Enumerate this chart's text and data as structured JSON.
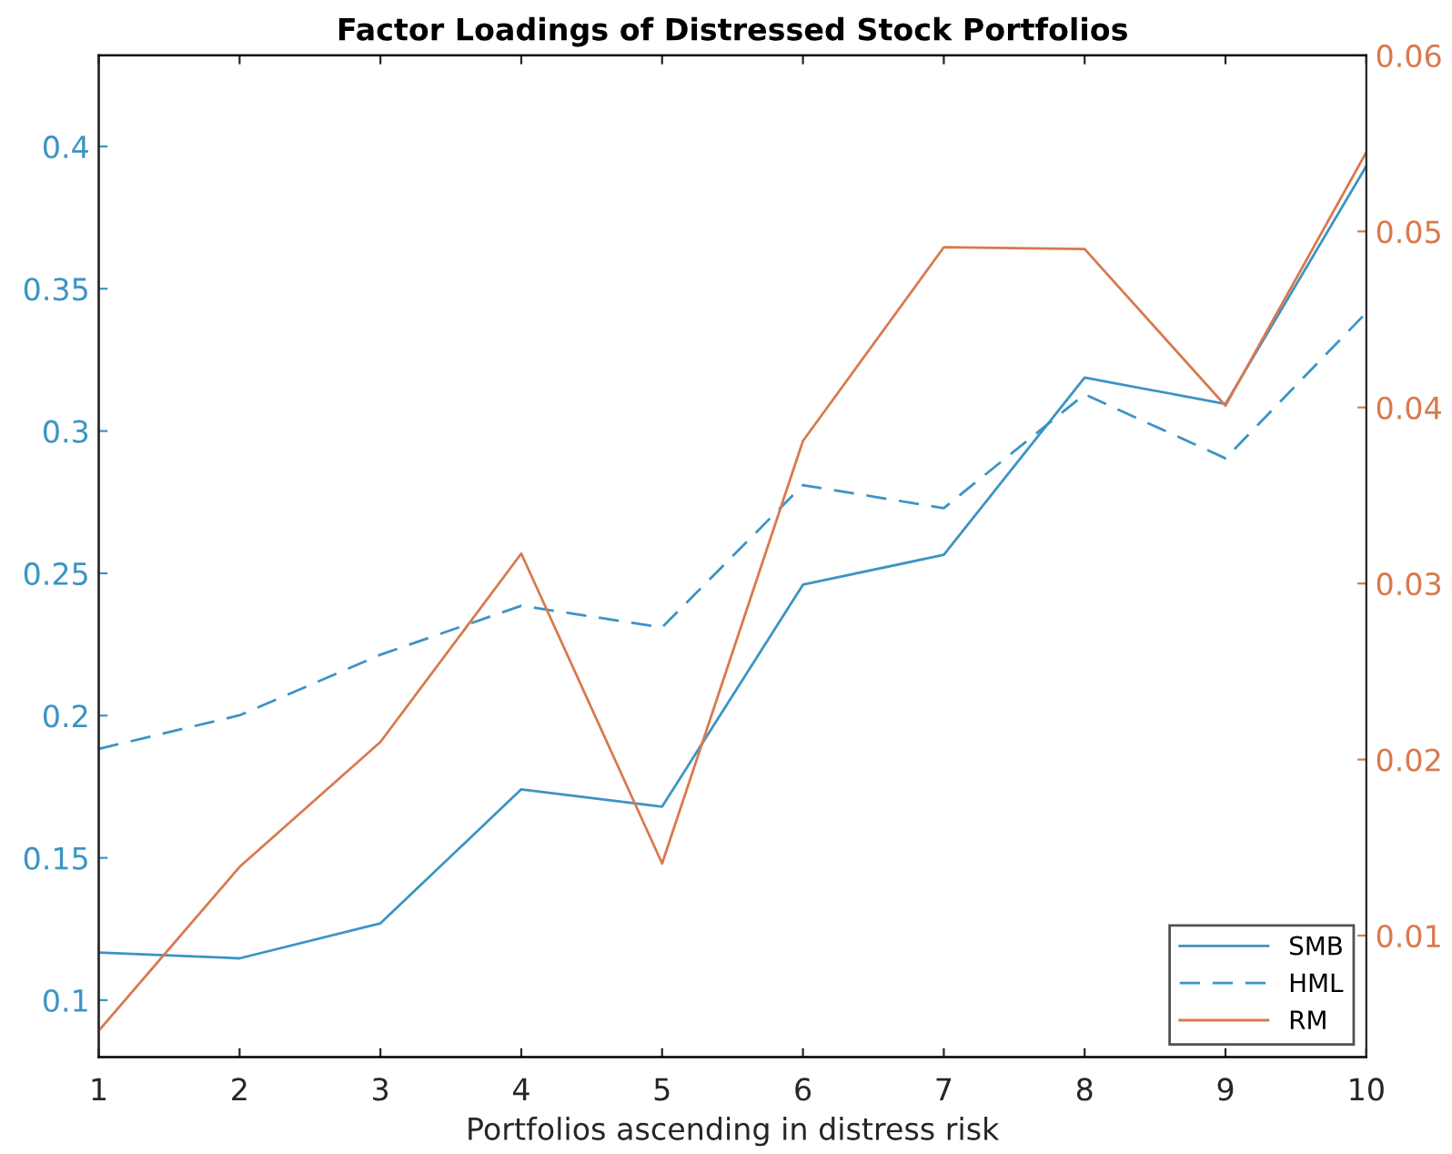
{
  "chart_data": {
    "type": "line",
    "title": "Factor Loadings of Distressed Stock Portfolios",
    "xlabel": "Portfolios ascending in distress risk",
    "x": [
      1,
      2,
      3,
      4,
      5,
      6,
      7,
      8,
      9,
      10
    ],
    "xlim": [
      1,
      10
    ],
    "xticks": [
      1,
      2,
      3,
      4,
      5,
      6,
      7,
      8,
      9,
      10
    ],
    "ylim": [
      0.08,
      0.432
    ],
    "yticks": [
      0.1,
      0.15,
      0.2,
      0.25,
      0.3,
      0.35,
      0.4
    ],
    "y2lim": [
      0.0031,
      0.06
    ],
    "y2ticks": [
      0.01,
      0.02,
      0.03,
      0.04,
      0.05,
      0.06
    ],
    "grid": false,
    "legend": "bottom right",
    "marker": "none",
    "series": [
      {
        "name": "SMB",
        "color": "#3c94c4",
        "line_style": "solid",
        "values": [
          0.1167,
          0.1147,
          0.127,
          0.1741,
          0.168,
          0.246,
          0.2565,
          0.3188,
          0.3095,
          0.3931
        ]
      },
      {
        "name": "HML",
        "color": "#3c94c4",
        "line_style": "dashed",
        "values": [
          0.1883,
          0.2001,
          0.2214,
          0.2386,
          0.231,
          0.281,
          0.2729,
          0.3129,
          0.2904,
          0.3416
        ]
      },
      {
        "name": "RM",
        "color": "#d87a4e",
        "line_style": "solid",
        "axis": "y2",
        "values": [
          0.0046,
          0.0139,
          0.021,
          0.0317,
          0.0141,
          0.0381,
          0.0491,
          0.049,
          0.0401,
          0.0545
        ]
      }
    ]
  }
}
